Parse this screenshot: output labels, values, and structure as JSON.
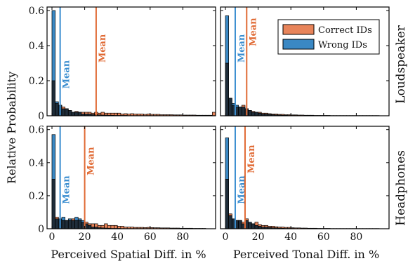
{
  "colors": {
    "correct": "#e8845a",
    "wrong": "#3a88c4",
    "overlap": "#1f2d3a",
    "mean_correct": "#e06a34",
    "mean_wrong": "#3b8ed0",
    "frame": "#000000"
  },
  "labels": {
    "ylabel": "Relative Probability",
    "xlabel_left": "Perceived Spatial Diff. in %",
    "xlabel_right": "Perceived Tonal Diff. in %",
    "row_top": "Loudspeaker",
    "row_bottom": "Headphones",
    "mean": "Mean"
  },
  "legend": {
    "placement": "top-right of top-right panel",
    "items": [
      "Correct IDs",
      "Wrong IDs"
    ]
  },
  "chart_data": [
    {
      "type": "bar",
      "panel": "loudspeaker-spatial",
      "bin_width": 2,
      "xlim": [
        -3,
        100
      ],
      "ylim": [
        0,
        0.62
      ],
      "xticks": [
        0,
        20,
        40,
        60,
        80
      ],
      "yticks": [
        0,
        0.2,
        0.4,
        0.6
      ],
      "xlabel": "Perceived Spatial Diff. in %",
      "ylabel": "Relative Probability",
      "series": [
        {
          "name": "Correct IDs",
          "mean": 27,
          "values": [
            0.2,
            0.07,
            0.06,
            0.05,
            0.04,
            0.03,
            0.02,
            0.025,
            0.02,
            0.02,
            0.02,
            0.02,
            0.015,
            0.02,
            0.015,
            0.02,
            0.015,
            0.015,
            0.015,
            0.015,
            0.015,
            0.01,
            0.012,
            0.01,
            0.012,
            0.01,
            0.01,
            0.01,
            0.008,
            0.01,
            0.008,
            0.008,
            0.008,
            0.006,
            0.006,
            0.006,
            0.006,
            0.005,
            0.005,
            0.005,
            0.004,
            0.004,
            0.004,
            0.004,
            0.003,
            0.003,
            0.003,
            0.003,
            0.003,
            0.02
          ]
        },
        {
          "name": "Wrong IDs",
          "mean": 5,
          "values": [
            0.6,
            0.08,
            0.06,
            0.04,
            0.04,
            0.03,
            0.02,
            0.02,
            0.02,
            0.01,
            0.01,
            0.01,
            0.008,
            0.006,
            0.005,
            0.004,
            0.004,
            0.003,
            0.003,
            0.002,
            0.002,
            0.002,
            0.002,
            0.001,
            0.001,
            0.001,
            0.001,
            0.001,
            0.001,
            0.001,
            0.001,
            0.001,
            0.001,
            0.001,
            0.001,
            0.001,
            0.001,
            0.001,
            0.001,
            0.001,
            0.001,
            0.001,
            0.001,
            0.001,
            0.001,
            0.001,
            0.001,
            0.001,
            0.001,
            0.001
          ]
        }
      ]
    },
    {
      "type": "bar",
      "panel": "loudspeaker-tonal",
      "bin_width": 2,
      "xlim": [
        -3,
        100
      ],
      "ylim": [
        0,
        0.62
      ],
      "xticks": [
        0,
        20,
        40,
        60,
        80
      ],
      "yticks": [
        0,
        0.2,
        0.4,
        0.6
      ],
      "xlabel": "Perceived Tonal Diff. in %",
      "ylabel": "",
      "series": [
        {
          "name": "Correct IDs",
          "mean": 13,
          "values": [
            0.3,
            0.1,
            0.06,
            0.05,
            0.05,
            0.06,
            0.04,
            0.03,
            0.025,
            0.02,
            0.02,
            0.015,
            0.015,
            0.012,
            0.01,
            0.01,
            0.008,
            0.008,
            0.006,
            0.006,
            0.005,
            0.005,
            0.004,
            0.004,
            0.003,
            0.003,
            0.003,
            0.002,
            0.002,
            0.002,
            0.002,
            0.002,
            0.001,
            0.001,
            0.001,
            0.001,
            0.001,
            0.001,
            0.001,
            0.001,
            0.001,
            0.001,
            0.001,
            0.001,
            0.001,
            0.001,
            0.001
          ]
        },
        {
          "name": "Wrong IDs",
          "mean": 6,
          "values": [
            0.57,
            0.1,
            0.07,
            0.06,
            0.05,
            0.05,
            0.04,
            0.03,
            0.02,
            0.02,
            0.015,
            0.01,
            0.01,
            0.008,
            0.006,
            0.005,
            0.004,
            0.003,
            0.003,
            0.002,
            0.002,
            0.002,
            0.001,
            0.001,
            0.001,
            0.001,
            0.001,
            0.001,
            0.001,
            0.001,
            0.001,
            0.001,
            0.001,
            0.001,
            0.001,
            0.001,
            0.001,
            0.001,
            0.001,
            0.001,
            0.001,
            0.001,
            0.001,
            0.001,
            0.001,
            0.001,
            0.001
          ]
        }
      ]
    },
    {
      "type": "bar",
      "panel": "headphones-spatial",
      "bin_width": 2,
      "xlim": [
        -3,
        100
      ],
      "ylim": [
        0,
        0.62
      ],
      "xticks": [
        0,
        20,
        40,
        60,
        80
      ],
      "yticks": [
        0,
        0.2,
        0.4,
        0.6
      ],
      "xlabel": "Perceived Spatial Diff. in %",
      "ylabel": "Relative Probability",
      "series": [
        {
          "name": "Correct IDs",
          "mean": 20,
          "values": [
            0.3,
            0.07,
            0.06,
            0.05,
            0.05,
            0.05,
            0.06,
            0.05,
            0.05,
            0.04,
            0.04,
            0.03,
            0.03,
            0.03,
            0.02,
            0.02,
            0.03,
            0.02,
            0.02,
            0.02,
            0.015,
            0.015,
            0.01,
            0.01,
            0.01,
            0.008,
            0.008,
            0.008,
            0.007,
            0.008,
            0.007,
            0.006,
            0.006,
            0.005,
            0.005,
            0.005,
            0.004,
            0.004,
            0.004,
            0.003,
            0.003,
            0.003,
            0.003,
            0.002,
            0.002,
            0.002,
            0.002
          ]
        },
        {
          "name": "Wrong IDs",
          "mean": 5,
          "values": [
            0.57,
            0.06,
            0.06,
            0.07,
            0.05,
            0.06,
            0.05,
            0.07,
            0.06,
            0.05,
            0.03,
            0.02,
            0.01,
            0.01,
            0.006,
            0.005,
            0.004,
            0.003,
            0.002,
            0.002,
            0.002,
            0.001,
            0.001,
            0.001,
            0.001,
            0.001,
            0.001,
            0.001,
            0.001,
            0.001,
            0.001,
            0.001,
            0.001,
            0.001,
            0.001,
            0.001,
            0.001,
            0.001,
            0.001,
            0.001,
            0.001,
            0.001,
            0.001,
            0.001,
            0.001,
            0.001,
            0.001
          ]
        }
      ]
    },
    {
      "type": "bar",
      "panel": "headphones-tonal",
      "bin_width": 2,
      "xlim": [
        -3,
        100
      ],
      "ylim": [
        0,
        0.62
      ],
      "xticks": [
        0,
        20,
        40,
        60,
        80
      ],
      "yticks": [
        0,
        0.2,
        0.4,
        0.6
      ],
      "xlabel": "Perceived Tonal Diff. in %",
      "ylabel": "",
      "series": [
        {
          "name": "Correct IDs",
          "mean": 12,
          "values": [
            0.3,
            0.09,
            0.06,
            0.05,
            0.05,
            0.04,
            0.06,
            0.035,
            0.03,
            0.04,
            0.025,
            0.02,
            0.02,
            0.015,
            0.015,
            0.012,
            0.01,
            0.01,
            0.008,
            0.008,
            0.006,
            0.005,
            0.005,
            0.004,
            0.004,
            0.003,
            0.003,
            0.003,
            0.002,
            0.002,
            0.002,
            0.002,
            0.001,
            0.001,
            0.001,
            0.001,
            0.001,
            0.001,
            0.001,
            0.001,
            0.001,
            0.001,
            0.001,
            0.001,
            0.001,
            0.001,
            0.001
          ]
        },
        {
          "name": "Wrong IDs",
          "mean": 6,
          "values": [
            0.55,
            0.08,
            0.06,
            0.05,
            0.05,
            0.03,
            0.05,
            0.04,
            0.03,
            0.02,
            0.015,
            0.01,
            0.01,
            0.008,
            0.006,
            0.005,
            0.004,
            0.003,
            0.002,
            0.002,
            0.002,
            0.001,
            0.001,
            0.001,
            0.001,
            0.001,
            0.001,
            0.001,
            0.001,
            0.001,
            0.001,
            0.001,
            0.001,
            0.001,
            0.001,
            0.001,
            0.001,
            0.001,
            0.001,
            0.001,
            0.001,
            0.001,
            0.001,
            0.001,
            0.001,
            0.001,
            0.001
          ]
        }
      ]
    }
  ]
}
